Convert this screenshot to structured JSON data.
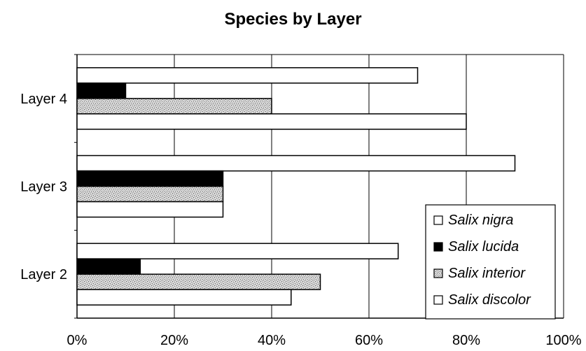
{
  "chart_data": {
    "type": "bar",
    "orientation": "horizontal",
    "title": "Species by Layer",
    "xlabel": "",
    "ylabel": "",
    "categories": [
      "Layer 4",
      "Layer 3",
      "Layer 2"
    ],
    "x_ticks": [
      "0%",
      "20%",
      "40%",
      "60%",
      "80%",
      "100%"
    ],
    "xlim": [
      0,
      100
    ],
    "grid": "vertical",
    "legend_position": "bottom-right",
    "series": [
      {
        "name": "Salix nigra",
        "values": [
          70,
          90,
          66
        ],
        "color": "#ffffff"
      },
      {
        "name": "Salix lucida",
        "values": [
          10,
          30,
          13
        ],
        "color": "#000000"
      },
      {
        "name": "Salix interior",
        "values": [
          40,
          30,
          50
        ],
        "color": "#c4c4c4"
      },
      {
        "name": "Salix discolor",
        "values": [
          80,
          30,
          44
        ],
        "color": "#ffffff"
      }
    ]
  }
}
